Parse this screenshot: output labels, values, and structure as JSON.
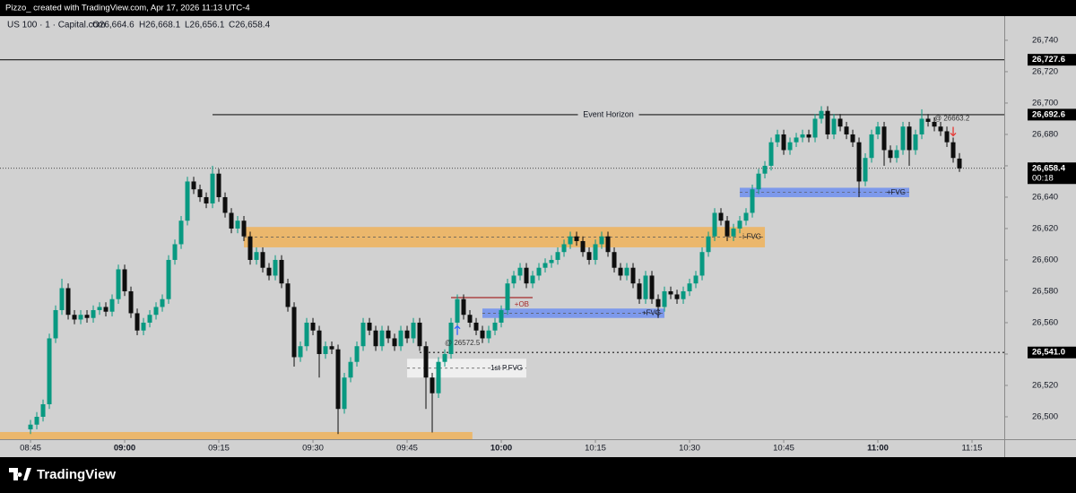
{
  "header": {
    "caption": "Pizzo_ created with TradingView.com, Apr 17, 2026 11:13 UTC-4"
  },
  "footer": {
    "brand": "TradingView"
  },
  "chart_data": {
    "type": "candlestick",
    "legend": {
      "symbol": "US 100 · 1 · Capital.com",
      "open": "O26,664.6",
      "high": "H26,668.1",
      "low": "L26,656.1",
      "close": "C26,658.4"
    },
    "up_color": "#089981",
    "down_color": "#0e0e0e",
    "xlim": [
      -4.86,
      155.14
    ],
    "ylim": [
      26485.7,
      26755.4
    ],
    "xticks": [
      {
        "value": 0,
        "label": "08:45"
      },
      {
        "value": 15,
        "label": "09:00",
        "bold": true
      },
      {
        "value": 30,
        "label": "09:15"
      },
      {
        "value": 45,
        "label": "09:30"
      },
      {
        "value": 60,
        "label": "09:45"
      },
      {
        "value": 75,
        "label": "10:00",
        "bold": true
      },
      {
        "value": 90,
        "label": "10:15"
      },
      {
        "value": 105,
        "label": "10:30"
      },
      {
        "value": 120,
        "label": "10:45"
      },
      {
        "value": 135,
        "label": "11:00",
        "bold": true
      },
      {
        "value": 150,
        "label": "11:15"
      }
    ],
    "yticks": [
      {
        "value": 26500,
        "label": "26,500"
      },
      {
        "value": 26520,
        "label": "26,520"
      },
      {
        "value": 26540,
        "label": "26,540"
      },
      {
        "value": 26560,
        "label": "26,560"
      },
      {
        "value": 26580,
        "label": "26,580"
      },
      {
        "value": 26600,
        "label": "26,600"
      },
      {
        "value": 26620,
        "label": "26,620"
      },
      {
        "value": 26640,
        "label": "26,640"
      },
      {
        "value": 26660,
        "label": "26,660"
      },
      {
        "value": 26680,
        "label": "26,680"
      },
      {
        "value": 26700,
        "label": "26,700"
      },
      {
        "value": 26720,
        "label": "26,720"
      },
      {
        "value": 26740,
        "label": "26,740"
      }
    ],
    "levels": [
      {
        "value": 26727.6,
        "label": "26,727.6",
        "style": "solid"
      },
      {
        "value": 26692.6,
        "label": "26,692.6",
        "style": "solid",
        "from": 29,
        "text": "Event Horizon"
      },
      {
        "value": 26658.4,
        "label": "26,658.4",
        "style": "dotted",
        "countdown": "00:18"
      },
      {
        "value": 26541.0,
        "label": "26,541.0",
        "style": "dashed",
        "from": 62
      }
    ],
    "zones": [
      {
        "top": 26621,
        "bottom": 26608,
        "from": 34,
        "to": 117,
        "color": "#f0b35a",
        "label": "i-FVG"
      },
      {
        "top": 26490.3,
        "bottom": 26485.7,
        "from": -4.86,
        "to": 70.4,
        "color": "#f0b35a"
      },
      {
        "top": 26646,
        "bottom": 26640,
        "from": 113,
        "to": 140,
        "color": "#6f8ff0",
        "label": "+FVG"
      },
      {
        "top": 26569,
        "bottom": 26563,
        "from": 72,
        "to": 101,
        "color": "#6f8ff0",
        "label": "+FVG"
      },
      {
        "top": 26537,
        "bottom": 26525,
        "from": 60,
        "to": 79,
        "color": "#f4f4f4",
        "label": "1st P.FVG"
      }
    ],
    "ob_line": {
      "value": 26576,
      "from": 67,
      "to": 80,
      "color": "#a52a2a",
      "label": "+OB"
    },
    "annotations": [
      {
        "text": "@ 26572.5",
        "x": 66,
        "y": 26547
      },
      {
        "text": "@ 26663.2",
        "x": 144,
        "y": 26690
      }
    ],
    "markers": [
      {
        "direction": "up",
        "x": 68,
        "y": 26555,
        "color": "#2962ff"
      },
      {
        "direction": "down",
        "x": 147,
        "y": 26682,
        "color": "#e53935"
      }
    ],
    "candles": [
      [
        26492,
        26498,
        26489,
        26495
      ],
      [
        26495,
        26503,
        26492,
        26500
      ],
      [
        26500,
        26511,
        26497,
        26508
      ],
      [
        26508,
        26553,
        26505,
        26550
      ],
      [
        26550,
        26571,
        26547,
        26568
      ],
      [
        26568,
        26588,
        26565,
        26582
      ],
      [
        26582,
        26585,
        26562,
        26565
      ],
      [
        26565,
        26568,
        26559,
        26562
      ],
      [
        26562,
        26568,
        26559,
        26565
      ],
      [
        26565,
        26568,
        26560,
        26563
      ],
      [
        26563,
        26571,
        26560,
        26568
      ],
      [
        26568,
        26573,
        26565,
        26570
      ],
      [
        26570,
        26573,
        26564,
        26567
      ],
      [
        26567,
        26578,
        26564,
        26575
      ],
      [
        26575,
        26597,
        26572,
        26594
      ],
      [
        26594,
        26597,
        26577,
        26580
      ],
      [
        26580,
        26583,
        26563,
        26566
      ],
      [
        26566,
        26569,
        26552,
        26555
      ],
      [
        26555,
        26563,
        26552,
        26560
      ],
      [
        26560,
        26568,
        26557,
        26565
      ],
      [
        26565,
        26573,
        26562,
        26570
      ],
      [
        26570,
        26578,
        26567,
        26575
      ],
      [
        26575,
        26603,
        26572,
        26600
      ],
      [
        26600,
        26613,
        26597,
        26610
      ],
      [
        26610,
        26628,
        26607,
        26625
      ],
      [
        26625,
        26653,
        26622,
        26650
      ],
      [
        26650,
        26653,
        26642,
        26645
      ],
      [
        26645,
        26648,
        26637,
        26640
      ],
      [
        26640,
        26643,
        26633,
        26636
      ],
      [
        26636,
        26660,
        26633,
        26655
      ],
      [
        26655,
        26658,
        26637,
        26640
      ],
      [
        26640,
        26643,
        26627,
        26630
      ],
      [
        26630,
        26633,
        26617,
        26620
      ],
      [
        26620,
        26628,
        26617,
        26625
      ],
      [
        26625,
        26628,
        26612,
        26615
      ],
      [
        26615,
        26618,
        26597,
        26600
      ],
      [
        26600,
        26608,
        26597,
        26605
      ],
      [
        26605,
        26608,
        26592,
        26595
      ],
      [
        26595,
        26598,
        26587,
        26590
      ],
      [
        26590,
        26603,
        26587,
        26600
      ],
      [
        26600,
        26603,
        26582,
        26585
      ],
      [
        26585,
        26588,
        26567,
        26570
      ],
      [
        26570,
        26573,
        26532,
        26538
      ],
      [
        26538,
        26548,
        26535,
        26545
      ],
      [
        26545,
        26563,
        26542,
        26560
      ],
      [
        26560,
        26563,
        26552,
        26555
      ],
      [
        26555,
        26558,
        26525,
        26540
      ],
      [
        26540,
        26548,
        26537,
        26545
      ],
      [
        26545,
        26548,
        26540,
        26543
      ],
      [
        26543,
        26546,
        26489,
        26505
      ],
      [
        26505,
        26528,
        26502,
        26525
      ],
      [
        26525,
        26538,
        26522,
        26535
      ],
      [
        26535,
        26548,
        26532,
        26545
      ],
      [
        26545,
        26563,
        26542,
        26560
      ],
      [
        26560,
        26563,
        26552,
        26555
      ],
      [
        26555,
        26558,
        26542,
        26545
      ],
      [
        26545,
        26558,
        26542,
        26555
      ],
      [
        26555,
        26558,
        26547,
        26550
      ],
      [
        26550,
        26553,
        26542,
        26545
      ],
      [
        26545,
        26558,
        26542,
        26555
      ],
      [
        26555,
        26558,
        26547,
        26550
      ],
      [
        26550,
        26563,
        26547,
        26560
      ],
      [
        26560,
        26563,
        26542,
        26545
      ],
      [
        26545,
        26548,
        26505,
        26525
      ],
      [
        26525,
        26528,
        26490,
        26515
      ],
      [
        26515,
        26538,
        26512,
        26535
      ],
      [
        26535,
        26543,
        26532,
        26540
      ],
      [
        26540,
        26563,
        26537,
        26560
      ],
      [
        26560,
        26578,
        26557,
        26575
      ],
      [
        26575,
        26578,
        26562,
        26565
      ],
      [
        26565,
        26568,
        26557,
        26560
      ],
      [
        26560,
        26563,
        26552,
        26555
      ],
      [
        26555,
        26558,
        26547,
        26550
      ],
      [
        26550,
        26558,
        26547,
        26555
      ],
      [
        26555,
        26563,
        26552,
        26560
      ],
      [
        26560,
        26571,
        26557,
        26568
      ],
      [
        26568,
        26588,
        26565,
        26585
      ],
      [
        26585,
        26593,
        26582,
        26590
      ],
      [
        26590,
        26598,
        26587,
        26595
      ],
      [
        26595,
        26598,
        26582,
        26585
      ],
      [
        26585,
        26593,
        26582,
        26590
      ],
      [
        26590,
        26598,
        26587,
        26595
      ],
      [
        26595,
        26601,
        26592,
        26598
      ],
      [
        26598,
        26603,
        26595,
        26600
      ],
      [
        26600,
        26608,
        26597,
        26605
      ],
      [
        26605,
        26613,
        26602,
        26610
      ],
      [
        26610,
        26618,
        26607,
        26615
      ],
      [
        26615,
        26618,
        26609,
        26612
      ],
      [
        26612,
        26615,
        26602,
        26605
      ],
      [
        26605,
        26608,
        26597,
        26600
      ],
      [
        26600,
        26613,
        26597,
        26610
      ],
      [
        26610,
        26618,
        26607,
        26615
      ],
      [
        26615,
        26618,
        26602,
        26605
      ],
      [
        26605,
        26608,
        26592,
        26595
      ],
      [
        26595,
        26598,
        26587,
        26590
      ],
      [
        26590,
        26598,
        26587,
        26595
      ],
      [
        26595,
        26598,
        26582,
        26585
      ],
      [
        26585,
        26588,
        26572,
        26575
      ],
      [
        26575,
        26593,
        26572,
        26590
      ],
      [
        26590,
        26593,
        26572,
        26575
      ],
      [
        26575,
        26578,
        26563,
        26570
      ],
      [
        26570,
        26583,
        26567,
        26580
      ],
      [
        26580,
        26583,
        26575,
        26578
      ],
      [
        26578,
        26581,
        26572,
        26575
      ],
      [
        26575,
        26583,
        26572,
        26580
      ],
      [
        26580,
        26588,
        26577,
        26585
      ],
      [
        26585,
        26593,
        26582,
        26590
      ],
      [
        26590,
        26608,
        26587,
        26605
      ],
      [
        26605,
        26618,
        26602,
        26615
      ],
      [
        26615,
        26633,
        26612,
        26630
      ],
      [
        26630,
        26633,
        26622,
        26625
      ],
      [
        26625,
        26628,
        26612,
        26615
      ],
      [
        26615,
        26623,
        26612,
        26620
      ],
      [
        26620,
        26628,
        26617,
        26625
      ],
      [
        26625,
        26633,
        26622,
        26630
      ],
      [
        26630,
        26648,
        26627,
        26645
      ],
      [
        26645,
        26658,
        26642,
        26655
      ],
      [
        26655,
        26663,
        26652,
        26660
      ],
      [
        26660,
        26678,
        26657,
        26675
      ],
      [
        26675,
        26683,
        26672,
        26680
      ],
      [
        26680,
        26683,
        26667,
        26670
      ],
      [
        26670,
        26678,
        26667,
        26675
      ],
      [
        26675,
        26681,
        26672,
        26678
      ],
      [
        26678,
        26683,
        26675,
        26680
      ],
      [
        26680,
        26683,
        26675,
        26678
      ],
      [
        26678,
        26693,
        26675,
        26690
      ],
      [
        26690,
        26698,
        26687,
        26695
      ],
      [
        26695,
        26698,
        26677,
        26680
      ],
      [
        26680,
        26693,
        26677,
        26690
      ],
      [
        26690,
        26693,
        26682,
        26685
      ],
      [
        26685,
        26688,
        26677,
        26680
      ],
      [
        26680,
        26683,
        26672,
        26675
      ],
      [
        26675,
        26678,
        26640,
        26650
      ],
      [
        26650,
        26668,
        26647,
        26665
      ],
      [
        26665,
        26683,
        26662,
        26680
      ],
      [
        26680,
        26688,
        26677,
        26685
      ],
      [
        26685,
        26688,
        26660,
        26670
      ],
      [
        26670,
        26673,
        26662,
        26665
      ],
      [
        26665,
        26673,
        26662,
        26670
      ],
      [
        26670,
        26688,
        26667,
        26685
      ],
      [
        26685,
        26688,
        26660,
        26670
      ],
      [
        26670,
        26683,
        26667,
        26680
      ],
      [
        26680,
        26696,
        26677,
        26690
      ],
      [
        26690,
        26693,
        26685,
        26688
      ],
      [
        26688,
        26691,
        26682,
        26685
      ],
      [
        26685,
        26688,
        26679,
        26682
      ],
      [
        26682,
        26685,
        26672,
        26675
      ],
      [
        26675,
        26678,
        26662,
        26665
      ],
      [
        26664.6,
        26668.1,
        26656.1,
        26658.4
      ]
    ]
  }
}
